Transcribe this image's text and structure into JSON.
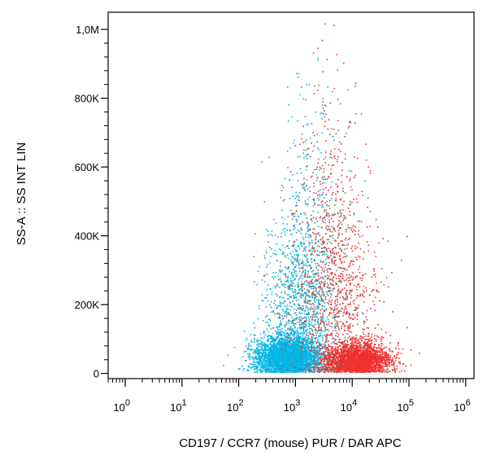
{
  "chart_data": {
    "type": "scatter",
    "title": "",
    "xlabel": "CD197 / CCR7 (mouse) PUR / DAR APC",
    "ylabel": "SS-A :: SS INT LIN",
    "x_scale": "log",
    "xlim": [
      0.5,
      1400000
    ],
    "ylim": [
      -15000,
      1050000
    ],
    "grid": false,
    "legend": "none",
    "x_ticks": [
      {
        "value": 1,
        "base": "10",
        "exp": "0"
      },
      {
        "value": 10,
        "base": "10",
        "exp": "1"
      },
      {
        "value": 100,
        "base": "10",
        "exp": "2"
      },
      {
        "value": 1000,
        "base": "10",
        "exp": "3"
      },
      {
        "value": 10000,
        "base": "10",
        "exp": "4"
      },
      {
        "value": 100000,
        "base": "10",
        "exp": "5"
      },
      {
        "value": 1000000,
        "base": "10",
        "exp": "6"
      }
    ],
    "y_ticks": [
      {
        "value": 0,
        "label": "0"
      },
      {
        "value": 200000,
        "label": "200K"
      },
      {
        "value": 400000,
        "label": "400K"
      },
      {
        "value": 600000,
        "label": "600K"
      },
      {
        "value": 800000,
        "label": "800K"
      },
      {
        "value": 1000000,
        "label": "1,0M"
      }
    ],
    "series": [
      {
        "color": "#00b8e8",
        "clusters": [
          {
            "x_log_center": 2.85,
            "x_log_spread": 0.28,
            "y_center": 50000,
            "y_spread": 30000,
            "count": 3600
          },
          {
            "x_log_center": 3.05,
            "x_log_spread": 0.3,
            "y_center": 200000,
            "y_spread": 130000,
            "count": 900
          },
          {
            "x_log_center": 3.15,
            "x_log_spread": 0.3,
            "y_center": 500000,
            "y_spread": 180000,
            "count": 180
          }
        ]
      },
      {
        "color": "#f03030",
        "clusters": [
          {
            "x_log_center": 4.1,
            "x_log_spread": 0.28,
            "y_center": 40000,
            "y_spread": 25000,
            "count": 2800
          },
          {
            "x_log_center": 3.8,
            "x_log_spread": 0.35,
            "y_center": 220000,
            "y_spread": 150000,
            "count": 700
          },
          {
            "x_log_center": 3.6,
            "x_log_spread": 0.3,
            "y_center": 500000,
            "y_spread": 200000,
            "count": 200
          }
        ]
      },
      {
        "color": "#707070",
        "clusters": [
          {
            "x_log_center": 3.3,
            "x_log_spread": 0.35,
            "y_center": 180000,
            "y_spread": 140000,
            "count": 500
          },
          {
            "x_log_center": 3.5,
            "x_log_spread": 0.3,
            "y_center": 450000,
            "y_spread": 180000,
            "count": 150
          }
        ]
      }
    ]
  }
}
